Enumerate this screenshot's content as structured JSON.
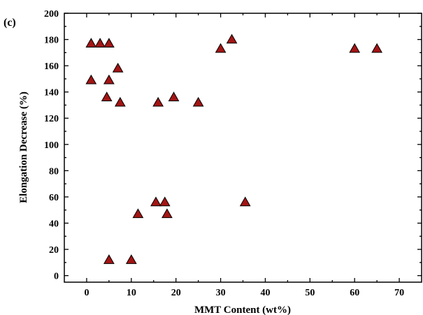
{
  "panel_label": "(c)",
  "chart_data": {
    "type": "scatter",
    "xlabel": "MMT Content (wt%)",
    "ylabel": "Elongation Decrease (%)",
    "xlim": [
      -5,
      75
    ],
    "ylim": [
      -5,
      200
    ],
    "xticks": [
      0,
      10,
      20,
      30,
      40,
      50,
      60,
      70
    ],
    "yticks": [
      0,
      20,
      40,
      60,
      80,
      100,
      120,
      140,
      160,
      180,
      200
    ],
    "marker": "triangle",
    "marker_color": "#a31515",
    "grid": false,
    "legend": "none",
    "points": [
      {
        "x": 1,
        "y": 177
      },
      {
        "x": 3,
        "y": 177
      },
      {
        "x": 5,
        "y": 177
      },
      {
        "x": 1,
        "y": 149
      },
      {
        "x": 5,
        "y": 149
      },
      {
        "x": 7,
        "y": 158
      },
      {
        "x": 4.5,
        "y": 136
      },
      {
        "x": 7.5,
        "y": 132
      },
      {
        "x": 16,
        "y": 132
      },
      {
        "x": 19.5,
        "y": 136
      },
      {
        "x": 25,
        "y": 132
      },
      {
        "x": 30,
        "y": 173
      },
      {
        "x": 32.5,
        "y": 180
      },
      {
        "x": 60,
        "y": 173
      },
      {
        "x": 65,
        "y": 173
      },
      {
        "x": 15.5,
        "y": 56
      },
      {
        "x": 17.5,
        "y": 56
      },
      {
        "x": 18,
        "y": 47
      },
      {
        "x": 11.5,
        "y": 47
      },
      {
        "x": 35.5,
        "y": 56
      },
      {
        "x": 5,
        "y": 12
      },
      {
        "x": 10,
        "y": 12
      }
    ]
  }
}
